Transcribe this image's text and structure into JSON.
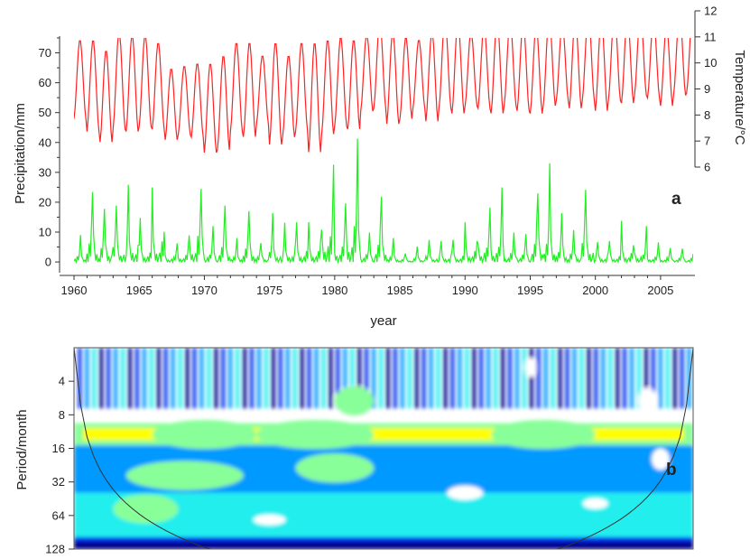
{
  "chart_data": [
    {
      "type": "line",
      "panel_label": "a",
      "x_ticks": [
        "1960",
        "1965",
        "1970",
        "1975",
        "1980",
        "1985",
        "1990",
        "1995",
        "2000",
        "2005"
      ],
      "xlabel": "year",
      "xlim": [
        1960,
        2007.5
      ],
      "ylabel": "Precipitation/mm",
      "y_ticks": [
        "0",
        "10",
        "20",
        "30",
        "40",
        "50",
        "60",
        "70"
      ],
      "ylim": [
        -3,
        75
      ],
      "y2label": "Temperature/°C",
      "y2_ticks": [
        "6",
        "7",
        "8",
        "9",
        "10",
        "11",
        "12"
      ],
      "y2lim": [
        6,
        12
      ],
      "colors": {
        "temperature": "#ff2222",
        "precipitation": "#22ee22"
      },
      "temperature": {
        "axis": "right",
        "note": "monthly seasonal cycle; annual max/min per year",
        "years": [
          1960,
          1961,
          1962,
          1963,
          1964,
          1965,
          1966,
          1967,
          1968,
          1969,
          1970,
          1971,
          1972,
          1973,
          1974,
          1975,
          1976,
          1977,
          1978,
          1979,
          1980,
          1981,
          1982,
          1983,
          1984,
          1985,
          1986,
          1987,
          1988,
          1989,
          1990,
          1991,
          1992,
          1993,
          1994,
          1995,
          1996,
          1997,
          1998,
          1999,
          2000,
          2001,
          2002,
          2003,
          2004,
          2005,
          2006,
          2007
        ],
        "annual_max": [
          10.9,
          10.9,
          10.5,
          11.2,
          11.1,
          11.1,
          10.8,
          9.8,
          9.9,
          10.0,
          10.0,
          10.3,
          10.8,
          10.8,
          10.3,
          10.8,
          10.3,
          10.8,
          10.8,
          10.9,
          11.0,
          10.9,
          11.1,
          11.6,
          11.2,
          11.0,
          10.9,
          11.2,
          11.7,
          11.6,
          11.2,
          11.4,
          11.7,
          11.6,
          11.5,
          11.4,
          11.8,
          11.5,
          11.7,
          11.9,
          11.7,
          11.9,
          11.8,
          11.9,
          11.7,
          11.4,
          11.9,
          11.9
        ],
        "annual_min": [
          7.8,
          7.3,
          6.9,
          7.4,
          7.3,
          7.5,
          7.4,
          7.0,
          7.2,
          7.1,
          6.5,
          6.6,
          7.3,
          7.1,
          7.6,
          6.8,
          7.1,
          7.3,
          6.5,
          7.2,
          7.5,
          7.4,
          8.1,
          8.2,
          7.6,
          7.8,
          8.2,
          7.7,
          8.2,
          8.0,
          8.3,
          8.2,
          8.0,
          8.3,
          8.1,
          8.0,
          8.3,
          8.5,
          8.2,
          8.5,
          8.1,
          8.5,
          8.4,
          8.7,
          8.6,
          8.3,
          8.7,
          8.8
        ]
      },
      "precipitation": {
        "axis": "left",
        "note": "monthly series; annual peak per year",
        "years": [
          1960,
          1961,
          1962,
          1963,
          1964,
          1965,
          1966,
          1967,
          1968,
          1969,
          1970,
          1971,
          1972,
          1973,
          1974,
          1975,
          1976,
          1977,
          1978,
          1979,
          1980,
          1981,
          1982,
          1983,
          1984,
          1985,
          1986,
          1987,
          1988,
          1989,
          1990,
          1991,
          1992,
          1993,
          1994,
          1995,
          1996,
          1997,
          1998,
          1999,
          2000,
          2001,
          2002,
          2003,
          2004,
          2005,
          2006,
          2007
        ],
        "annual_peak": [
          9,
          30,
          24,
          27,
          30,
          18,
          32,
          8,
          12,
          35,
          14,
          23,
          8,
          23,
          9,
          19,
          16,
          17,
          18,
          44,
          28,
          48,
          12,
          28,
          8,
          4,
          6,
          9,
          9,
          10,
          19,
          26,
          29,
          12,
          12,
          31,
          33,
          19,
          13,
          31,
          9,
          10,
          16,
          14,
          8,
          6,
          6,
          6
        ]
      }
    },
    {
      "type": "heatmap",
      "panel_label": "b",
      "description": "Wavelet power spectrum, jet colormap (blue low to dark red high), white below lowest contour",
      "ylabel": "Period/month",
      "y_ticks": [
        "4",
        "8",
        "16",
        "32",
        "64",
        "128"
      ],
      "y_scale": "log2",
      "ylim": [
        2,
        128
      ],
      "xlim": [
        1960,
        2007.5
      ],
      "colormap": [
        "#ffffff",
        "#00008b",
        "#0033ee",
        "#0099ff",
        "#22eeee",
        "#88ff99",
        "#ffff00",
        "#ff9900",
        "#ee2200",
        "#990000"
      ],
      "cone_of_influence": true,
      "high_power_regions": [
        {
          "period_months": 12,
          "years": [
            1966,
            1974
          ],
          "level": 8
        },
        {
          "period_months": 12,
          "years": [
            1974,
            1983
          ],
          "level": 8
        },
        {
          "period_months": 12,
          "years": [
            1992,
            2000
          ],
          "level": 8
        },
        {
          "period_months": 6,
          "years": [
            1980,
            1983
          ],
          "level": 7
        },
        {
          "period_months": 28,
          "years": [
            1964,
            1973
          ],
          "level": 6
        },
        {
          "period_months": 24,
          "years": [
            1977,
            1983
          ],
          "level": 6
        },
        {
          "period_months": 56,
          "years": [
            1963,
            1968
          ],
          "level": 5
        }
      ]
    }
  ]
}
